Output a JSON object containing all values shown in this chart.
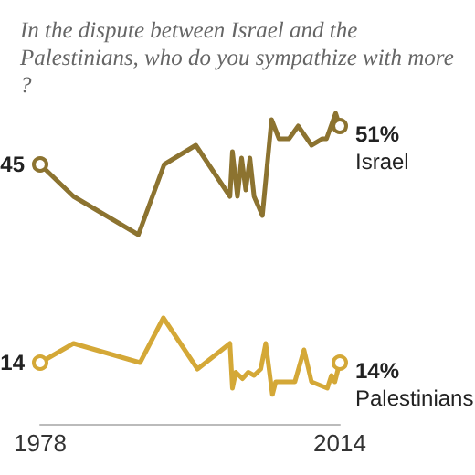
{
  "chart_data": {
    "type": "line",
    "title": "In the dispute between Israel and the Palestinians, who do you sympathize with more?",
    "xlim": [
      1978,
      2014
    ],
    "xticks": [
      1978,
      2014
    ],
    "legend": false,
    "grid": false,
    "series": [
      {
        "name": "Israel",
        "color": "#8c7330",
        "x": [
          1978,
          1982,
          1989.8,
          1992.9,
          1996.7,
          2000.8,
          2001.1,
          2001.7,
          2002.2,
          2002.7,
          2003.2,
          2003.7,
          2004.7,
          2005.8,
          2006.7,
          2007.9,
          2009,
          2010.6,
          2011.9,
          2012.4,
          2013.5,
          2014
        ],
        "values": [
          45,
          40,
          34,
          45,
          48,
          40,
          47,
          40,
          46,
          41,
          46,
          40,
          37,
          52,
          49,
          49,
          51,
          48,
          49,
          49,
          53,
          51
        ],
        "value_labels": [
          "45",
          null,
          null,
          null,
          null,
          null,
          null,
          null,
          null,
          null,
          null,
          null,
          null,
          null,
          null,
          null,
          null,
          null,
          null,
          null,
          null,
          "51%"
        ]
      },
      {
        "name": "Palestinians",
        "color": "#d4a837",
        "x": [
          1978,
          1982,
          1990,
          1992.8,
          1996.9,
          2000.8,
          2001.1,
          2001.5,
          2002.3,
          2003,
          2003.7,
          2004.5,
          2005.1,
          2005.9,
          2006.3,
          2008.6,
          2009.7,
          2010.6,
          2012.5,
          2013,
          2013.4,
          2014
        ],
        "values": [
          14,
          17,
          14,
          21,
          13,
          17,
          10,
          12.5,
          11.5,
          12.5,
          12,
          13,
          17,
          9,
          11,
          11,
          16,
          11,
          10,
          12,
          11,
          14
        ],
        "value_labels": [
          "14",
          null,
          null,
          null,
          null,
          null,
          null,
          null,
          null,
          null,
          null,
          null,
          null,
          null,
          null,
          null,
          null,
          null,
          null,
          null,
          null,
          "14%"
        ]
      }
    ]
  }
}
